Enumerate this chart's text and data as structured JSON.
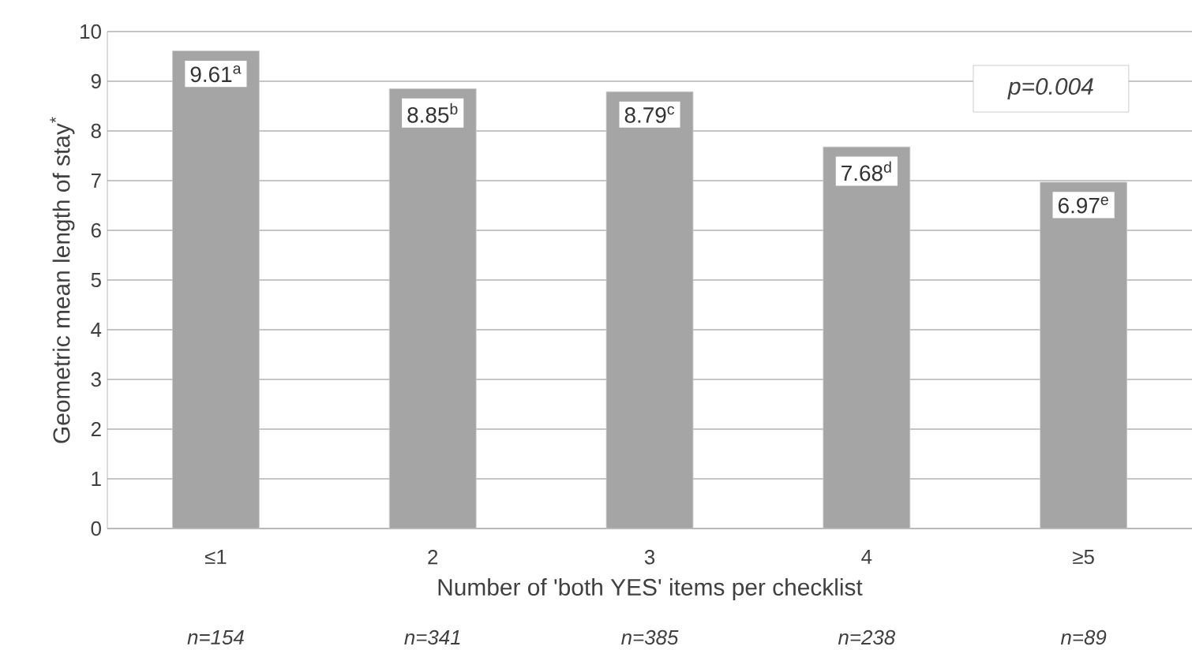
{
  "chart_data": {
    "type": "bar",
    "ylabel": "Geometric mean length of stay$^{*}$",
    "xlabel": "Number of  'both YES' items per checklist",
    "categories": [
      "≤1",
      "2",
      "3",
      "4",
      "≥5"
    ],
    "values": [
      9.61,
      8.85,
      8.79,
      7.68,
      6.97
    ],
    "value_labels": [
      "9.61$^{a}$",
      "8.85$^{b}$",
      "8.79$^{c}$",
      "7.68$^{d}$",
      "6.97$^{e}$"
    ],
    "color": "#a5a5a5",
    "ylim": [
      0,
      10
    ],
    "yticks": [
      0,
      1,
      2,
      3,
      4,
      5,
      6,
      7,
      8,
      9,
      10
    ],
    "grid": "y",
    "annotations": [
      "p=0.004",
      "n=154",
      "n=341",
      "n=385",
      "n=238",
      "n=89"
    ]
  }
}
